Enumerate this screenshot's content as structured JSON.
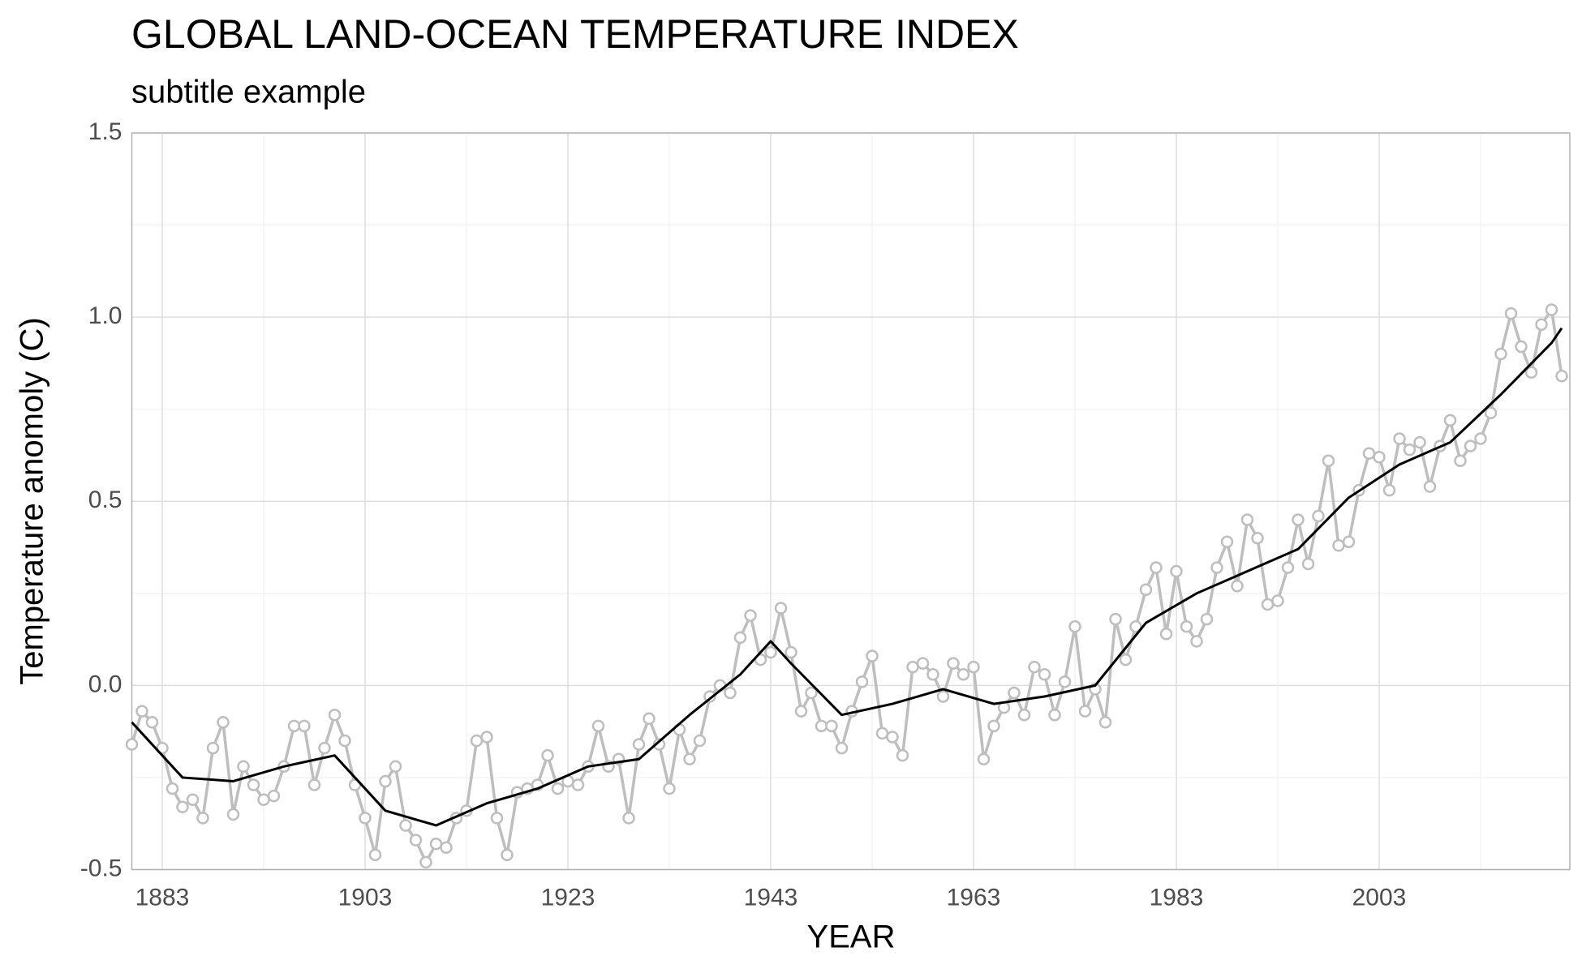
{
  "chart_data": {
    "type": "line",
    "title": "GLOBAL LAND-OCEAN TEMPERATURE INDEX",
    "subtitle": "subtitle example",
    "x_label": "YEAR",
    "y_label": "Temperature anomoly (C)",
    "x": [
      1880,
      1881,
      1882,
      1883,
      1884,
      1885,
      1886,
      1887,
      1888,
      1889,
      1890,
      1891,
      1892,
      1893,
      1894,
      1895,
      1896,
      1897,
      1898,
      1899,
      1900,
      1901,
      1902,
      1903,
      1904,
      1905,
      1906,
      1907,
      1908,
      1909,
      1910,
      1911,
      1912,
      1913,
      1914,
      1915,
      1916,
      1917,
      1918,
      1919,
      1920,
      1921,
      1922,
      1923,
      1924,
      1925,
      1926,
      1927,
      1928,
      1929,
      1930,
      1931,
      1932,
      1933,
      1934,
      1935,
      1936,
      1937,
      1938,
      1939,
      1940,
      1941,
      1942,
      1943,
      1944,
      1945,
      1946,
      1947,
      1948,
      1949,
      1950,
      1951,
      1952,
      1953,
      1954,
      1955,
      1956,
      1957,
      1958,
      1959,
      1960,
      1961,
      1962,
      1963,
      1964,
      1965,
      1966,
      1967,
      1968,
      1969,
      1970,
      1971,
      1972,
      1973,
      1974,
      1975,
      1976,
      1977,
      1978,
      1979,
      1980,
      1981,
      1982,
      1983,
      1984,
      1985,
      1986,
      1987,
      1988,
      1989,
      1990,
      1991,
      1992,
      1993,
      1994,
      1995,
      1996,
      1997,
      1998,
      1999,
      2000,
      2001,
      2002,
      2003,
      2004,
      2005,
      2006,
      2007,
      2008,
      2009,
      2010,
      2011,
      2012,
      2013,
      2014,
      2015,
      2016,
      2017,
      2018,
      2019,
      2020,
      2021
    ],
    "series": [
      {
        "color": "#bebebe",
        "marker": "circle",
        "values": [
          -0.16,
          -0.07,
          -0.1,
          -0.17,
          -0.28,
          -0.33,
          -0.31,
          -0.36,
          -0.17,
          -0.1,
          -0.35,
          -0.22,
          -0.27,
          -0.31,
          -0.3,
          -0.22,
          -0.11,
          -0.11,
          -0.27,
          -0.17,
          -0.08,
          -0.15,
          -0.27,
          -0.36,
          -0.46,
          -0.26,
          -0.22,
          -0.38,
          -0.42,
          -0.48,
          -0.43,
          -0.44,
          -0.36,
          -0.34,
          -0.15,
          -0.14,
          -0.36,
          -0.46,
          -0.29,
          -0.28,
          -0.27,
          -0.19,
          -0.28,
          -0.26,
          -0.27,
          -0.22,
          -0.11,
          -0.22,
          -0.2,
          -0.36,
          -0.16,
          -0.09,
          -0.16,
          -0.28,
          -0.12,
          -0.2,
          -0.15,
          -0.03,
          0.0,
          -0.02,
          0.13,
          0.19,
          0.07,
          0.09,
          0.21,
          0.09,
          -0.07,
          -0.02,
          -0.11,
          -0.11,
          -0.17,
          -0.07,
          0.01,
          0.08,
          -0.13,
          -0.14,
          -0.19,
          0.05,
          0.06,
          0.03,
          -0.03,
          0.06,
          0.03,
          0.05,
          -0.2,
          -0.11,
          -0.06,
          -0.02,
          -0.08,
          0.05,
          0.03,
          -0.08,
          0.01,
          0.16,
          -0.07,
          -0.01,
          -0.1,
          0.18,
          0.07,
          0.16,
          0.26,
          0.32,
          0.14,
          0.31,
          0.16,
          0.12,
          0.18,
          0.32,
          0.39,
          0.27,
          0.45,
          0.4,
          0.22,
          0.23,
          0.32,
          0.45,
          0.33,
          0.46,
          0.61,
          0.38,
          0.39,
          0.53,
          0.63,
          0.62,
          0.53,
          0.67,
          0.64,
          0.66,
          0.54,
          0.65,
          0.72,
          0.61,
          0.65,
          0.67,
          0.74,
          0.9,
          1.01,
          0.92,
          0.85,
          0.98,
          1.02,
          0.84
        ]
      },
      {
        "color": "#000000",
        "x": [
          1880,
          1885,
          1890,
          1895,
          1900,
          1905,
          1910,
          1915,
          1920,
          1925,
          1930,
          1935,
          1940,
          1943,
          1945,
          1950,
          1955,
          1960,
          1965,
          1970,
          1975,
          1980,
          1985,
          1990,
          1995,
          2000,
          2005,
          2010,
          2015,
          2020,
          2021
        ],
        "values": [
          -0.1,
          -0.25,
          -0.26,
          -0.22,
          -0.19,
          -0.34,
          -0.38,
          -0.32,
          -0.28,
          -0.22,
          -0.2,
          -0.08,
          0.03,
          0.12,
          0.06,
          -0.08,
          -0.05,
          -0.01,
          -0.05,
          -0.03,
          0.0,
          0.17,
          0.25,
          0.31,
          0.37,
          0.51,
          0.6,
          0.66,
          0.79,
          0.93,
          0.97
        ]
      }
    ],
    "xlim": [
      1880,
      2021.8
    ],
    "ylim": [
      -0.5,
      1.5
    ],
    "xticks": [
      1883,
      1903,
      1923,
      1943,
      1963,
      1983,
      2003
    ],
    "xticks_minor": [
      1893,
      1913,
      1933,
      1953,
      1973,
      1993,
      2013
    ],
    "yticks": [
      -0.5,
      {
        "value": 0,
        "label": "0.0"
      },
      0.5,
      {
        "value": 1,
        "label": "1.0"
      },
      1.5
    ],
    "yticks_minor": [
      -0.25,
      0.25,
      0.75,
      1.25
    ],
    "grid": true
  }
}
